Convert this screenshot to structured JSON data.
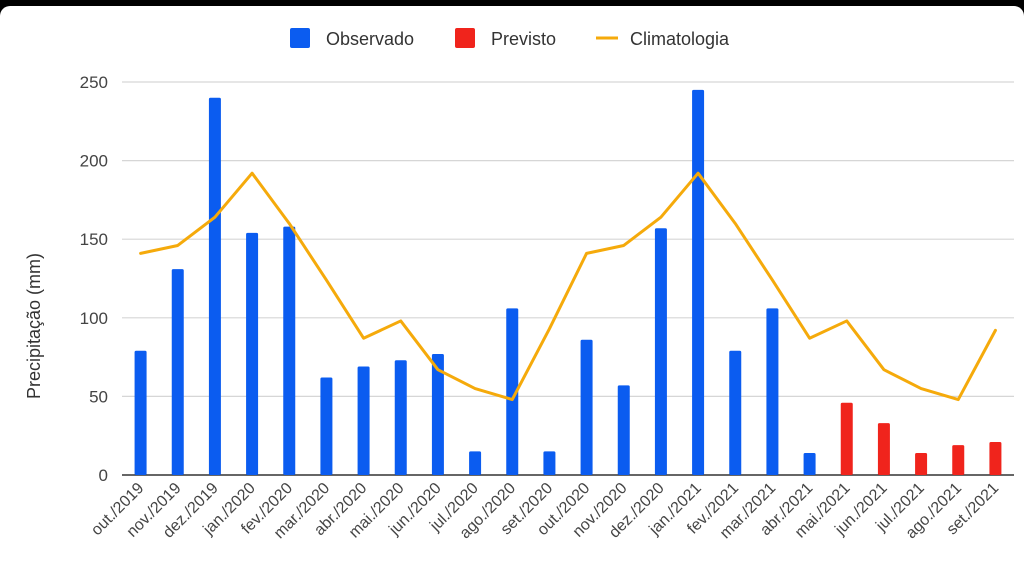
{
  "chart_data": {
    "type": "bar",
    "title": "",
    "xlabel": "",
    "ylabel": "Precipitação (mm)",
    "ylim": [
      0,
      250
    ],
    "yticks": [
      0,
      50,
      100,
      150,
      200,
      250
    ],
    "grid": true,
    "legend_position": "top-center",
    "categories": [
      "out./2019",
      "nov./2019",
      "dez./2019",
      "jan./2020",
      "fev./2020",
      "mar./2020",
      "abr./2020",
      "mai./2020",
      "jun./2020",
      "jul./2020",
      "ago./2020",
      "set./2020",
      "out./2020",
      "nov./2020",
      "dez./2020",
      "jan./2021",
      "fev./2021",
      "mar./2021",
      "abr./2021",
      "mai./2021",
      "jun./2021",
      "jul./2021",
      "ago./2021",
      "set./2021"
    ],
    "series": [
      {
        "name": "Observado",
        "type": "bar",
        "color": "#0b5cf0",
        "values": [
          79,
          131,
          240,
          154,
          158,
          62,
          69,
          73,
          77,
          15,
          106,
          15,
          86,
          57,
          157,
          245,
          79,
          106,
          14,
          null,
          null,
          null,
          null,
          null
        ]
      },
      {
        "name": "Previsto",
        "type": "bar",
        "color": "#f0241c",
        "values": [
          null,
          null,
          null,
          null,
          null,
          null,
          null,
          null,
          null,
          null,
          null,
          null,
          null,
          null,
          null,
          null,
          null,
          null,
          null,
          46,
          33,
          14,
          19,
          21
        ]
      },
      {
        "name": "Climatologia",
        "type": "line",
        "color": "#f5aa0b",
        "values": [
          141,
          146,
          164,
          192,
          160,
          124,
          87,
          98,
          67,
          55,
          48,
          93,
          141,
          146,
          164,
          192,
          160,
          124,
          87,
          98,
          67,
          55,
          48,
          92
        ]
      }
    ]
  }
}
